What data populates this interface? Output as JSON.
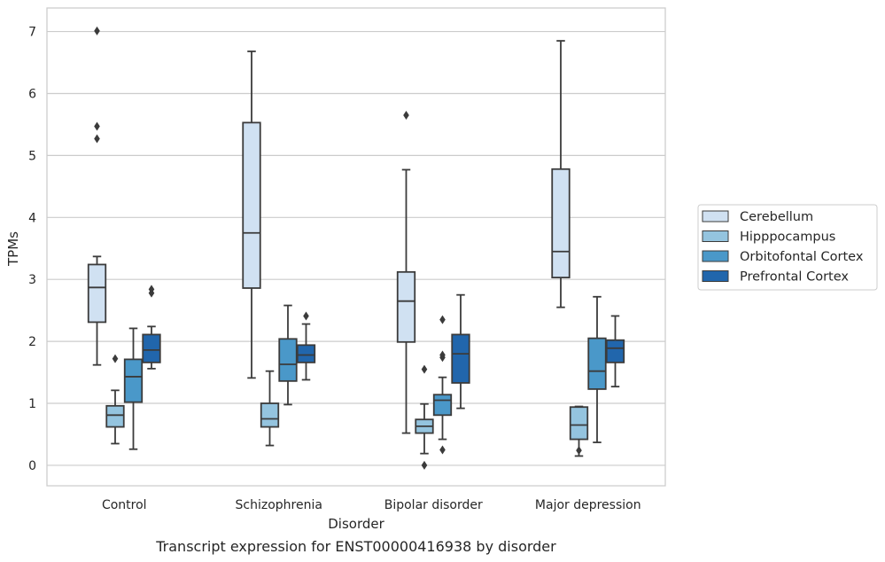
{
  "chart_data": {
    "type": "box",
    "title": "",
    "caption": "Transcript expression for ENST00000416938 by disorder",
    "xlabel": "Disorder",
    "ylabel": "TPMs",
    "ylim": [
      -0.33,
      7.38
    ],
    "yticks": [
      "0",
      "1",
      "2",
      "3",
      "4",
      "5",
      "6",
      "7"
    ],
    "grid": "horizontal",
    "legend_position": "right",
    "categories": [
      "Control",
      "Schizophrenia",
      "Bipolar disorder",
      "Major depression"
    ],
    "series": [
      {
        "name": "Cerebellum",
        "color": "#d0e1f2",
        "boxes": [
          {
            "whislo": 1.62,
            "q1": 2.31,
            "med": 2.87,
            "q3": 3.24,
            "whishi": 3.37,
            "fliers": [
              5.27,
              5.47,
              7.01
            ]
          },
          {
            "whislo": 1.41,
            "q1": 2.86,
            "med": 3.75,
            "q3": 5.53,
            "whishi": 6.68,
            "fliers": []
          },
          {
            "whislo": 0.52,
            "q1": 1.99,
            "med": 2.65,
            "q3": 3.12,
            "whishi": 4.77,
            "fliers": [
              5.65
            ]
          },
          {
            "whislo": 2.55,
            "q1": 3.03,
            "med": 3.45,
            "q3": 4.78,
            "whishi": 6.85,
            "fliers": []
          }
        ]
      },
      {
        "name": "Hipppocampus",
        "color": "#94c4df",
        "boxes": [
          {
            "whislo": 0.35,
            "q1": 0.62,
            "med": 0.81,
            "q3": 0.96,
            "whishi": 1.21,
            "fliers": [
              1.72
            ]
          },
          {
            "whislo": 0.32,
            "q1": 0.62,
            "med": 0.75,
            "q3": 1.0,
            "whishi": 1.52,
            "fliers": []
          },
          {
            "whislo": 0.19,
            "q1": 0.52,
            "med": 0.63,
            "q3": 0.74,
            "whishi": 0.99,
            "fliers": [
              0.0,
              1.55
            ]
          },
          {
            "whislo": 0.15,
            "q1": 0.42,
            "med": 0.65,
            "q3": 0.94,
            "whishi": 0.95,
            "fliers": [
              0.24
            ]
          }
        ]
      },
      {
        "name": "Orbitofontal Cortex",
        "color": "#4a98c9",
        "boxes": [
          {
            "whislo": 0.26,
            "q1": 1.02,
            "med": 1.43,
            "q3": 1.71,
            "whishi": 2.21,
            "fliers": []
          },
          {
            "whislo": 0.98,
            "q1": 1.36,
            "med": 1.63,
            "q3": 2.04,
            "whishi": 2.58,
            "fliers": []
          },
          {
            "whislo": 0.42,
            "q1": 0.81,
            "med": 1.05,
            "q3": 1.14,
            "whishi": 1.42,
            "fliers": [
              0.25,
              1.74,
              1.78,
              2.35
            ]
          },
          {
            "whislo": 0.37,
            "q1": 1.23,
            "med": 1.52,
            "q3": 2.05,
            "whishi": 2.72,
            "fliers": []
          }
        ]
      },
      {
        "name": "Prefrontal Cortex",
        "color": "#2166ac",
        "boxes": [
          {
            "whislo": 1.56,
            "q1": 1.66,
            "med": 1.86,
            "q3": 2.11,
            "whishi": 2.24,
            "fliers": [
              2.78,
              2.84
            ]
          },
          {
            "whislo": 1.38,
            "q1": 1.66,
            "med": 1.78,
            "q3": 1.94,
            "whishi": 2.28,
            "fliers": [
              2.41
            ]
          },
          {
            "whislo": 0.92,
            "q1": 1.33,
            "med": 1.8,
            "q3": 2.11,
            "whishi": 2.75,
            "fliers": []
          },
          {
            "whislo": 1.27,
            "q1": 1.66,
            "med": 1.89,
            "q3": 2.02,
            "whishi": 2.41,
            "fliers": []
          }
        ]
      }
    ]
  }
}
